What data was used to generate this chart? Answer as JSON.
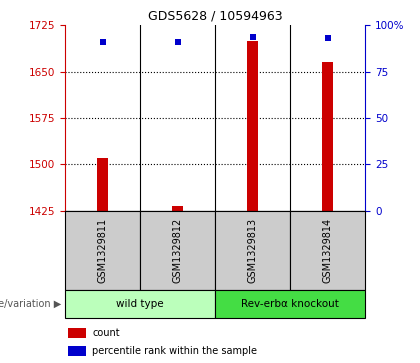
{
  "title": "GDS5628 / 10594963",
  "samples": [
    "GSM1329811",
    "GSM1329812",
    "GSM1329813",
    "GSM1329814"
  ],
  "counts": [
    1510,
    1432,
    1700,
    1665
  ],
  "percentile_ranks": [
    91,
    91,
    94,
    93
  ],
  "ylim_left": [
    1425,
    1725
  ],
  "yticks_left": [
    1425,
    1500,
    1575,
    1650,
    1725
  ],
  "yticks_right": [
    0,
    25,
    50,
    75,
    100
  ],
  "bar_color": "#cc0000",
  "dot_color": "#0000cc",
  "groups": [
    {
      "label": "wild type",
      "indices": [
        0,
        1
      ],
      "color": "#bbffbb"
    },
    {
      "label": "Rev-erbα knockout",
      "indices": [
        2,
        3
      ],
      "color": "#44dd44"
    }
  ],
  "left_color": "#cc0000",
  "right_color": "#0000cc",
  "bar_width": 0.15,
  "base_count": 1425,
  "sample_box_color": "#cccccc",
  "genotype_label": "genotype/variation",
  "legend_items": [
    {
      "color": "#cc0000",
      "label": "count"
    },
    {
      "color": "#0000cc",
      "label": "percentile rank within the sample"
    }
  ]
}
